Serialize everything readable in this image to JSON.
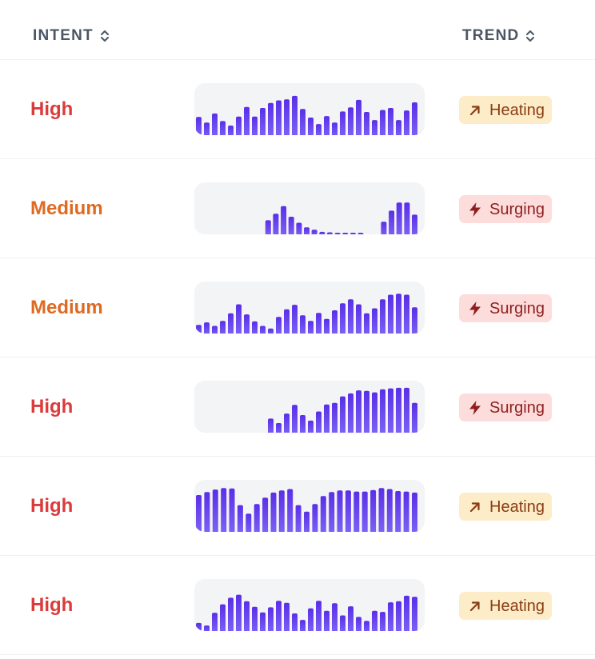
{
  "header": {
    "intent_label": "INTENT",
    "trend_label": "TREND"
  },
  "colors": {
    "high": "#dc3b3b",
    "medium": "#de6a22",
    "heating_bg": "#fdecc8",
    "heating_text": "#8a3d13",
    "surging_bg": "#fddcdc",
    "surging_text": "#8f1f1f",
    "bar_top": "#5a2fe8",
    "bar_bottom": "#7d63f5",
    "spark_bg": "#f3f4f6"
  },
  "rows": [
    {
      "intent": "High",
      "intent_level": "high",
      "trend": "Heating",
      "trend_icon": "arrow-up-right-icon",
      "spark": [
        0.36,
        0.25,
        0.43,
        0.28,
        0.19,
        0.37,
        0.56,
        0.37,
        0.54,
        0.64,
        0.69,
        0.71,
        0.78,
        0.52,
        0.35,
        0.22,
        0.38,
        0.25,
        0.47,
        0.55,
        0.7,
        0.46,
        0.3,
        0.5,
        0.54,
        0.3,
        0.49,
        0.65
      ]
    },
    {
      "intent": "Medium",
      "intent_level": "medium",
      "trend": "Surging",
      "trend_icon": "lightning-icon",
      "spark": [
        0,
        0,
        0,
        0,
        0,
        0,
        0,
        0,
        0,
        0.28,
        0.41,
        0.56,
        0.35,
        0.23,
        0.14,
        0.09,
        0.05,
        0.04,
        0.03,
        0.02,
        0.02,
        0.01,
        0,
        0,
        0.25,
        0.47,
        0.63,
        0.63,
        0.39
      ]
    },
    {
      "intent": "Medium",
      "intent_level": "medium",
      "trend": "Surging",
      "trend_icon": "lightning-icon",
      "spark": [
        0.17,
        0.22,
        0.15,
        0.25,
        0.4,
        0.58,
        0.38,
        0.24,
        0.15,
        0.1,
        0.33,
        0.48,
        0.57,
        0.36,
        0.25,
        0.41,
        0.29,
        0.46,
        0.6,
        0.68,
        0.58,
        0.4,
        0.5,
        0.68,
        0.77,
        0.79,
        0.77,
        0.52
      ]
    },
    {
      "intent": "High",
      "intent_level": "high",
      "trend": "Surging",
      "trend_icon": "lightning-icon",
      "spark": [
        0,
        0,
        0,
        0,
        0,
        0,
        0,
        0,
        0,
        0.28,
        0.19,
        0.38,
        0.55,
        0.35,
        0.24,
        0.42,
        0.56,
        0.59,
        0.72,
        0.78,
        0.84,
        0.83,
        0.8,
        0.86,
        0.88,
        0.89,
        0.89,
        0.59
      ]
    },
    {
      "intent": "High",
      "intent_level": "high",
      "trend": "Heating",
      "trend_icon": "arrow-up-right-icon",
      "spark": [
        0.73,
        0.79,
        0.84,
        0.87,
        0.86,
        0.53,
        0.36,
        0.55,
        0.68,
        0.78,
        0.82,
        0.85,
        0.53,
        0.4,
        0.55,
        0.71,
        0.79,
        0.82,
        0.82,
        0.8,
        0.8,
        0.83,
        0.87,
        0.85,
        0.81,
        0.8,
        0.78
      ]
    },
    {
      "intent": "High",
      "intent_level": "high",
      "trend": "Heating",
      "trend_icon": "arrow-up-right-icon",
      "spark": [
        0.16,
        0.11,
        0.36,
        0.53,
        0.66,
        0.72,
        0.59,
        0.48,
        0.37,
        0.47,
        0.6,
        0.56,
        0.35,
        0.22,
        0.45,
        0.6,
        0.4,
        0.55,
        0.31,
        0.49,
        0.28,
        0.2,
        0.4,
        0.38,
        0.57,
        0.59,
        0.7,
        0.68
      ]
    }
  ]
}
